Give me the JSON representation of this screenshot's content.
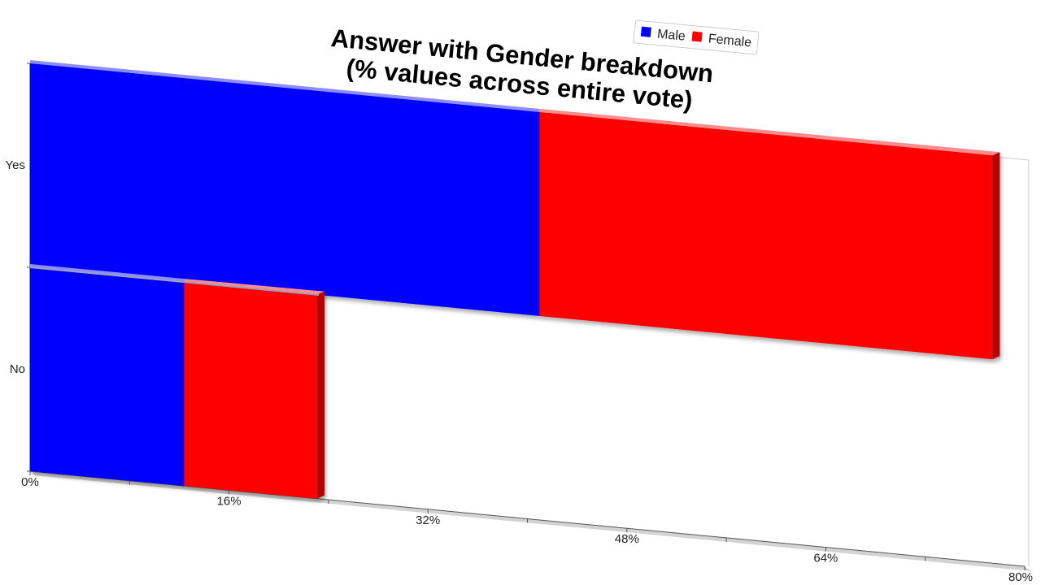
{
  "chart_data": {
    "type": "bar",
    "orientation": "horizontal",
    "stacked": true,
    "three_d": true,
    "title": [
      "Answer with Gender breakdown",
      "(% values across entire vote)"
    ],
    "categories": [
      "Yes",
      "No"
    ],
    "series": [
      {
        "name": "Male",
        "color": "#0000ff",
        "values": [
          41,
          12.4
        ]
      },
      {
        "name": "Female",
        "color": "#ff0000",
        "values": [
          36.4,
          10.7
        ]
      }
    ],
    "x_ticks": [
      "0%",
      "16%",
      "32%",
      "48%",
      "64%",
      "80%"
    ],
    "xlim": [
      0,
      80
    ],
    "legend": {
      "placement": "top-right"
    },
    "grid": false
  }
}
